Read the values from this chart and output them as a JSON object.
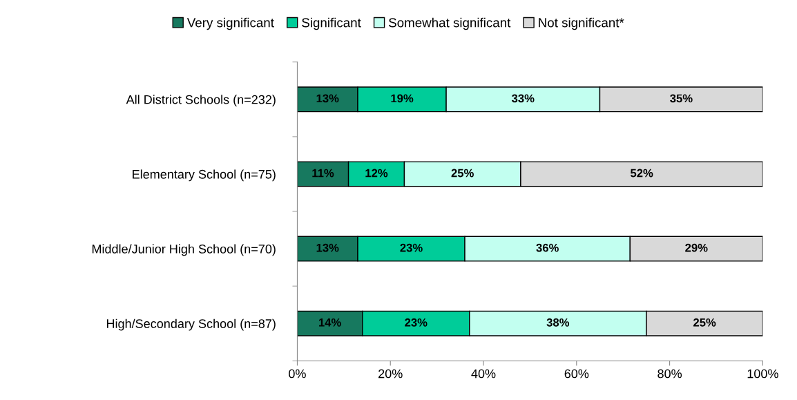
{
  "chart_data": {
    "type": "bar",
    "orientation": "horizontal",
    "stacked": true,
    "categories": [
      "All District Schools (n=232)",
      "Elementary School (n=75)",
      "Middle/Junior High School (n=70)",
      "High/Secondary School (n=87)"
    ],
    "series": [
      {
        "name": "Very significant",
        "color": "#17795f",
        "values": [
          13,
          11,
          13,
          14
        ],
        "value_labels": [
          "13%",
          "11%",
          "13%",
          "14%"
        ]
      },
      {
        "name": "Significant",
        "color": "#00cc99",
        "values": [
          19,
          12,
          23,
          23
        ],
        "value_labels": [
          "19%",
          "12%",
          "23%",
          "23%"
        ]
      },
      {
        "name": "Somewhat significant",
        "color": "#c2fff0",
        "values": [
          33,
          25,
          35.5,
          38
        ],
        "value_labels": [
          "33%",
          "25%",
          "36%",
          "38%"
        ]
      },
      {
        "name": "Not significant*",
        "color": "#d9d9d9",
        "values": [
          35,
          52,
          28.5,
          25
        ],
        "value_labels": [
          "35%",
          "52%",
          "29%",
          "25%"
        ]
      }
    ],
    "xlim": [
      0,
      100
    ],
    "xticks": [
      {
        "value": 0,
        "label": "0%"
      },
      {
        "value": 20,
        "label": "20%"
      },
      {
        "value": 40,
        "label": "40%"
      },
      {
        "value": 60,
        "label": "60%"
      },
      {
        "value": 80,
        "label": "80%"
      },
      {
        "value": 100,
        "label": "100%"
      }
    ],
    "grid": false,
    "legend": "top"
  }
}
